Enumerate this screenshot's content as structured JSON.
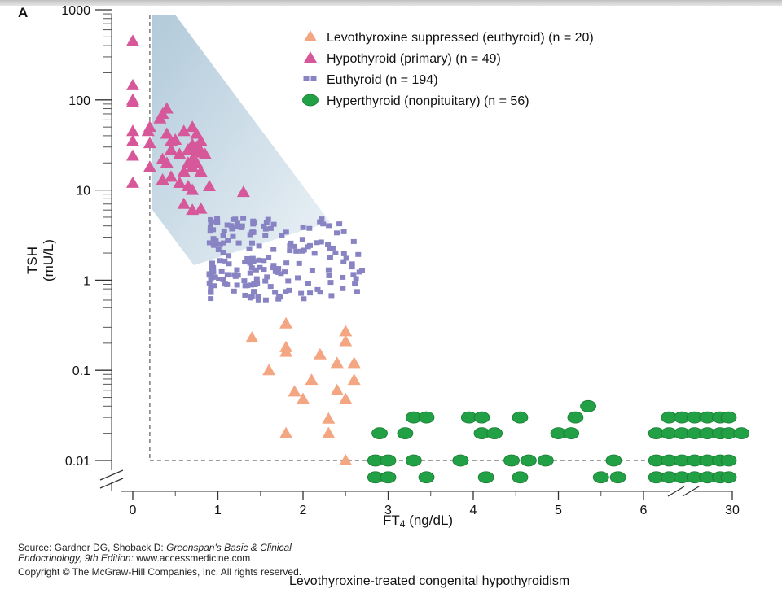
{
  "figure": {
    "panel_letter": "A",
    "footer": {
      "source_prefix": "Source: Gardner DG, Shoback D: ",
      "source_title": "Greenspan's Basic & Clinical",
      "source_title_2": "Endocrinology, 9th Edition:",
      "source_url": " www.accessmedicine.com",
      "copyright": "Copyright © The McGraw-Hill Companies, Inc. All rights reserved."
    },
    "caption": "Levothyroxine-treated congenital hypothyroidism"
  },
  "chart_data": {
    "type": "scatter",
    "xlabel": "FT",
    "xlabel_sub": "4",
    "xlabel_unit": " (ng/dL)",
    "ylabel": "TSH (mU/L)",
    "x_ticks": [
      "0",
      "1",
      "2",
      "3",
      "4",
      "5",
      "6",
      "30"
    ],
    "y_ticks": [
      "0.01",
      "0.1",
      "1",
      "10",
      "100",
      "1000"
    ],
    "y_scale": "log",
    "x_axis_break": "between 6 and 30",
    "y_axis_break": "below 0.01",
    "legend_position": "top-right",
    "reference_lines": {
      "ft4_lower": 0.2,
      "tsh_lower": 0.01
    },
    "series": [
      {
        "name": "Levothyroxine suppressed (euthyroid) (n = 20)",
        "marker": "triangle",
        "color": "#f4a582",
        "points": [
          [
            1.4,
            0.23
          ],
          [
            1.8,
            0.33
          ],
          [
            1.8,
            0.18
          ],
          [
            1.8,
            0.16
          ],
          [
            1.6,
            0.1
          ],
          [
            2.5,
            0.27
          ],
          [
            2.5,
            0.21
          ],
          [
            2.2,
            0.15
          ],
          [
            2.4,
            0.12
          ],
          [
            2.6,
            0.12
          ],
          [
            1.9,
            0.058
          ],
          [
            2.0,
            0.048
          ],
          [
            2.1,
            0.078
          ],
          [
            2.4,
            0.06
          ],
          [
            2.5,
            0.048
          ],
          [
            2.6,
            0.078
          ],
          [
            2.3,
            0.029
          ],
          [
            2.3,
            0.02
          ],
          [
            1.8,
            0.02
          ],
          [
            2.5,
            0.01
          ]
        ]
      },
      {
        "name": "Hypothyroid (primary) (n = 49)",
        "marker": "triangle",
        "color": "#d6589a",
        "points": [
          [
            0.0,
            450
          ],
          [
            0.0,
            145
          ],
          [
            0.0,
            100
          ],
          [
            0.0,
            95
          ],
          [
            0.0,
            45
          ],
          [
            0.0,
            35
          ],
          [
            0.0,
            24
          ],
          [
            0.0,
            12
          ],
          [
            0.18,
            45
          ],
          [
            0.2,
            50
          ],
          [
            0.2,
            33
          ],
          [
            0.2,
            18
          ],
          [
            0.32,
            62
          ],
          [
            0.35,
            70
          ],
          [
            0.4,
            80
          ],
          [
            0.4,
            42
          ],
          [
            0.45,
            35
          ],
          [
            0.45,
            28
          ],
          [
            0.35,
            22
          ],
          [
            0.4,
            20
          ],
          [
            0.35,
            13
          ],
          [
            0.45,
            14
          ],
          [
            0.5,
            36
          ],
          [
            0.55,
            25
          ],
          [
            0.55,
            12
          ],
          [
            0.6,
            45
          ],
          [
            0.6,
            16
          ],
          [
            0.65,
            28
          ],
          [
            0.65,
            20
          ],
          [
            0.7,
            50
          ],
          [
            0.7,
            32
          ],
          [
            0.7,
            22
          ],
          [
            0.7,
            18
          ],
          [
            0.7,
            10
          ],
          [
            0.7,
            6
          ],
          [
            0.75,
            42
          ],
          [
            0.75,
            30
          ],
          [
            0.75,
            26
          ],
          [
            0.75,
            20
          ],
          [
            0.8,
            35
          ],
          [
            0.8,
            27
          ],
          [
            0.8,
            16
          ],
          [
            0.8,
            6.2
          ],
          [
            0.6,
            7
          ],
          [
            0.65,
            11
          ],
          [
            0.9,
            11
          ],
          [
            0.85,
            25
          ],
          [
            0.55,
            12
          ],
          [
            1.3,
            9.5
          ]
        ]
      },
      {
        "name": "Euthyroid (n = 194)",
        "marker": "square",
        "color": "#8884c4",
        "cluster": {
          "ft4_range": [
            0.9,
            2.7
          ],
          "tsh_range": [
            0.6,
            5
          ]
        }
      },
      {
        "name": "Hyperthyroid (nonpituitary) (n = 56)",
        "marker": "circle",
        "color": "#22a045",
        "points": [
          [
            2.85,
            0.01
          ],
          [
            2.85,
            0.0065
          ],
          [
            3.0,
            0.01
          ],
          [
            3.0,
            0.0065
          ],
          [
            2.9,
            0.02
          ],
          [
            3.2,
            0.02
          ],
          [
            3.3,
            0.01
          ],
          [
            3.3,
            0.03
          ],
          [
            3.45,
            0.03
          ],
          [
            3.45,
            0.0065
          ],
          [
            3.85,
            0.01
          ],
          [
            3.95,
            0.03
          ],
          [
            4.1,
            0.03
          ],
          [
            4.1,
            0.02
          ],
          [
            4.25,
            0.02
          ],
          [
            4.15,
            0.0065
          ],
          [
            4.45,
            0.01
          ],
          [
            4.55,
            0.03
          ],
          [
            4.55,
            0.0065
          ],
          [
            4.65,
            0.01
          ],
          [
            4.85,
            0.01
          ],
          [
            5.0,
            0.02
          ],
          [
            5.15,
            0.02
          ],
          [
            5.2,
            0.03
          ],
          [
            5.35,
            0.04
          ],
          [
            5.5,
            0.0065
          ],
          [
            5.65,
            0.01
          ],
          [
            5.7,
            0.0065
          ],
          [
            6.15,
            0.02
          ],
          [
            6.15,
            0.01
          ],
          [
            6.15,
            0.0065
          ],
          [
            6.3,
            0.03
          ],
          [
            6.3,
            0.02
          ],
          [
            6.3,
            0.01
          ],
          [
            6.3,
            0.0065
          ],
          [
            6.45,
            0.03
          ],
          [
            6.45,
            0.02
          ],
          [
            6.45,
            0.01
          ],
          [
            6.45,
            0.0065
          ],
          [
            6.6,
            0.03
          ],
          [
            6.6,
            0.02
          ],
          [
            6.6,
            0.01
          ],
          [
            6.6,
            0.0065
          ],
          [
            6.75,
            0.03
          ],
          [
            6.75,
            0.02
          ],
          [
            6.75,
            0.01
          ],
          [
            6.75,
            0.0065
          ],
          [
            6.9,
            0.03
          ],
          [
            6.9,
            0.02
          ],
          [
            6.9,
            0.01
          ],
          [
            6.9,
            0.0065
          ],
          [
            7.0,
            0.03
          ],
          [
            7.0,
            0.02
          ],
          [
            7.0,
            0.01
          ],
          [
            7.0,
            0.0065
          ],
          [
            7.15,
            0.02
          ]
        ]
      }
    ]
  }
}
